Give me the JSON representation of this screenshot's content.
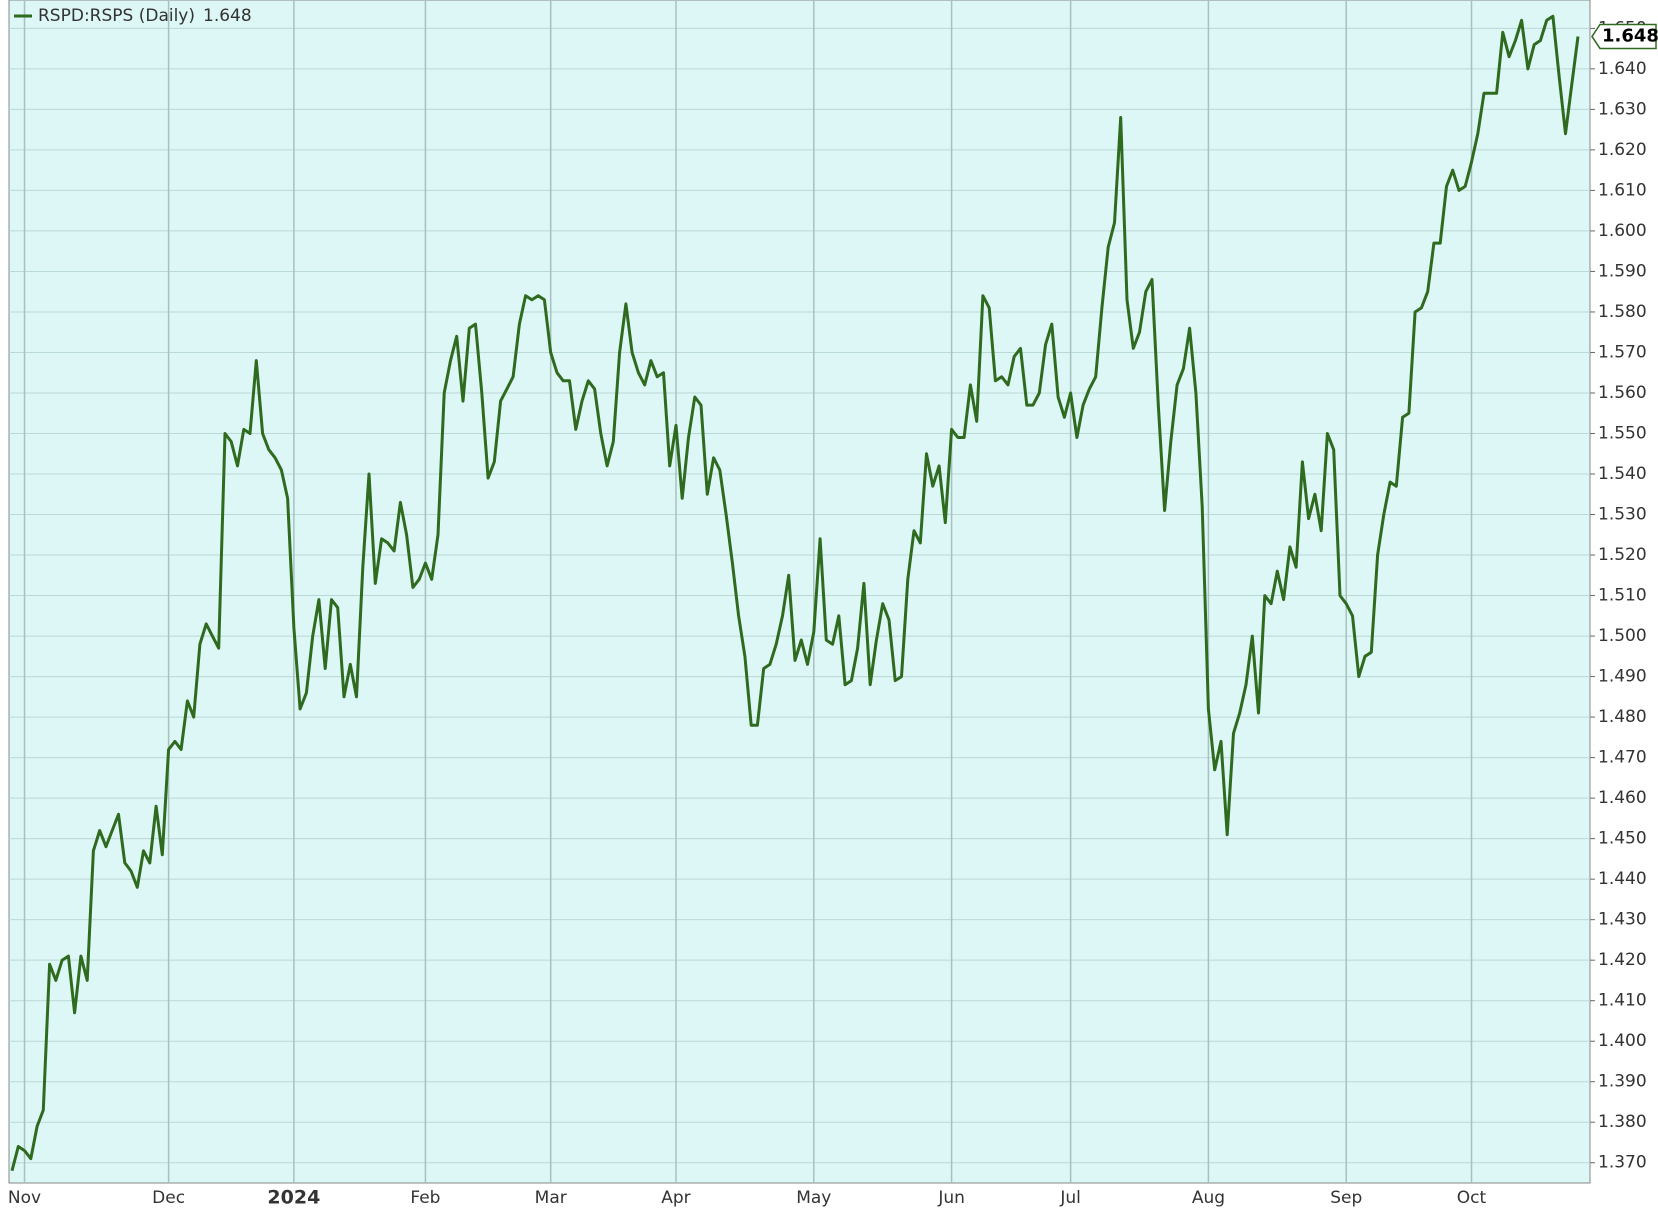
{
  "chart_data": {
    "type": "line",
    "series": [
      {
        "name": "RSPD:RSPS (Daily)",
        "color": "#2e6b1f",
        "value_labels": {
          "250": "1.648"
        },
        "values": [
          1.368,
          1.374,
          1.373,
          1.371,
          1.379,
          1.383,
          1.419,
          1.415,
          1.42,
          1.421,
          1.407,
          1.421,
          1.415,
          1.447,
          1.452,
          1.448,
          1.452,
          1.456,
          1.444,
          1.442,
          1.438,
          1.447,
          1.444,
          1.458,
          1.446,
          1.472,
          1.474,
          1.472,
          1.484,
          1.48,
          1.498,
          1.503,
          1.5,
          1.497,
          1.55,
          1.548,
          1.542,
          1.551,
          1.55,
          1.568,
          1.55,
          1.546,
          1.544,
          1.541,
          1.534,
          1.502,
          1.482,
          1.486,
          1.5,
          1.509,
          1.492,
          1.509,
          1.507,
          1.485,
          1.493,
          1.485,
          1.517,
          1.54,
          1.513,
          1.524,
          1.523,
          1.521,
          1.533,
          1.525,
          1.512,
          1.514,
          1.518,
          1.514,
          1.525,
          1.56,
          1.568,
          1.574,
          1.558,
          1.576,
          1.577,
          1.56,
          1.539,
          1.543,
          1.558,
          1.561,
          1.564,
          1.577,
          1.584,
          1.583,
          1.584,
          1.583,
          1.57,
          1.565,
          1.563,
          1.563,
          1.551,
          1.558,
          1.563,
          1.561,
          1.55,
          1.542,
          1.548,
          1.57,
          1.582,
          1.57,
          1.565,
          1.562,
          1.568,
          1.564,
          1.565,
          1.542,
          1.552,
          1.534,
          1.549,
          1.559,
          1.557,
          1.535,
          1.544,
          1.541,
          1.53,
          1.518,
          1.505,
          1.495,
          1.478,
          1.478,
          1.492,
          1.493,
          1.498,
          1.505,
          1.515,
          1.494,
          1.499,
          1.493,
          1.501,
          1.524,
          1.499,
          1.498,
          1.505,
          1.488,
          1.489,
          1.497,
          1.513,
          1.488,
          1.499,
          1.508,
          1.504,
          1.489,
          1.49,
          1.514,
          1.526,
          1.523,
          1.545,
          1.537,
          1.542,
          1.528,
          1.551,
          1.549,
          1.549,
          1.562,
          1.553,
          1.584,
          1.581,
          1.563,
          1.564,
          1.562,
          1.569,
          1.571,
          1.557,
          1.557,
          1.56,
          1.572,
          1.577,
          1.559,
          1.554,
          1.56,
          1.549,
          1.557,
          1.561,
          1.564,
          1.581,
          1.596,
          1.602,
          1.628,
          1.583,
          1.571,
          1.575,
          1.585,
          1.588,
          1.557,
          1.531,
          1.548,
          1.562,
          1.566,
          1.576,
          1.56,
          1.532,
          1.482,
          1.467,
          1.474,
          1.451,
          1.476,
          1.481,
          1.488,
          1.5,
          1.481,
          1.51,
          1.508,
          1.516,
          1.509,
          1.522,
          1.517,
          1.543,
          1.529,
          1.535,
          1.526,
          1.55,
          1.546,
          1.51,
          1.508,
          1.505,
          1.49,
          1.495,
          1.496,
          1.52,
          1.53,
          1.538,
          1.537,
          1.554,
          1.555,
          1.58,
          1.581,
          1.585,
          1.597,
          1.597,
          1.611,
          1.615,
          1.61,
          1.611,
          1.617,
          1.624,
          1.634,
          1.634,
          1.634,
          1.649,
          1.643,
          1.647,
          1.652,
          1.64,
          1.646,
          1.647,
          1.652,
          1.653,
          1.638,
          1.624,
          1.636,
          1.648
        ]
      }
    ],
    "categories": [
      null,
      null,
      "Nov",
      null,
      null,
      null,
      null,
      null,
      null,
      null,
      null,
      null,
      null,
      null,
      null,
      null,
      null,
      null,
      null,
      null,
      null,
      null,
      null,
      null,
      null,
      "Dec",
      null,
      null,
      null,
      null,
      null,
      null,
      null,
      null,
      null,
      null,
      null,
      null,
      null,
      null,
      null,
      null,
      null,
      null,
      null,
      "2024",
      null,
      null,
      null,
      null,
      null,
      null,
      null,
      null,
      null,
      null,
      null,
      null,
      null,
      null,
      null,
      null,
      null,
      null,
      null,
      null,
      "Feb",
      null,
      null,
      null,
      null,
      null,
      null,
      null,
      null,
      null,
      null,
      null,
      null,
      null,
      null,
      null,
      null,
      null,
      null,
      null,
      "Mar",
      null,
      null,
      null,
      null,
      null,
      null,
      null,
      null,
      null,
      null,
      null,
      null,
      null,
      null,
      null,
      null,
      null,
      null,
      null,
      "Apr",
      null,
      null,
      null,
      null,
      null,
      null,
      null,
      null,
      null,
      null,
      null,
      null,
      null,
      null,
      null,
      null,
      null,
      null,
      null,
      null,
      null,
      "May",
      null,
      null,
      null,
      null,
      null,
      null,
      null,
      null,
      null,
      null,
      null,
      null,
      null,
      null,
      null,
      null,
      null,
      null,
      null,
      null,
      null,
      "Jun",
      null,
      null,
      null,
      null,
      null,
      null,
      null,
      null,
      null,
      null,
      null,
      null,
      null,
      null,
      null,
      null,
      null,
      null,
      "Jul",
      null,
      null,
      null,
      null,
      null,
      null,
      null,
      null,
      null,
      null,
      null,
      null,
      null,
      null,
      null,
      null,
      null,
      null,
      null,
      null,
      null,
      "Aug",
      null,
      null,
      null,
      null,
      null,
      null,
      null,
      null,
      null,
      null,
      null,
      null,
      null,
      null,
      null,
      null,
      null,
      null,
      null,
      null,
      null,
      "Sep",
      null,
      null,
      null,
      null,
      null,
      null,
      null,
      null,
      null,
      null,
      null,
      null,
      null,
      null,
      null,
      null,
      null,
      null,
      null,
      "Oct",
      null,
      null,
      null,
      null,
      null,
      null,
      null,
      null,
      null,
      null,
      null,
      null,
      null,
      null,
      null,
      null,
      null
    ],
    "ylim": [
      1.365,
      1.657
    ],
    "yticks": [
      {
        "value": 1.37,
        "label": "1.370"
      },
      {
        "value": 1.38,
        "label": "1.380"
      },
      {
        "value": 1.39,
        "label": "1.390"
      },
      {
        "value": 1.4,
        "label": "1.400"
      },
      {
        "value": 1.41,
        "label": "1.410"
      },
      {
        "value": 1.42,
        "label": "1.420"
      },
      {
        "value": 1.43,
        "label": "1.430"
      },
      {
        "value": 1.44,
        "label": "1.440"
      },
      {
        "value": 1.45,
        "label": "1.450"
      },
      {
        "value": 1.46,
        "label": "1.460"
      },
      {
        "value": 1.47,
        "label": "1.470"
      },
      {
        "value": 1.48,
        "label": "1.480"
      },
      {
        "value": 1.49,
        "label": "1.490"
      },
      {
        "value": 1.5,
        "label": "1.500"
      },
      {
        "value": 1.51,
        "label": "1.510"
      },
      {
        "value": 1.52,
        "label": "1.520"
      },
      {
        "value": 1.53,
        "label": "1.530"
      },
      {
        "value": 1.54,
        "label": "1.540"
      },
      {
        "value": 1.55,
        "label": "1.550"
      },
      {
        "value": 1.56,
        "label": "1.560"
      },
      {
        "value": 1.57,
        "label": "1.570"
      },
      {
        "value": 1.58,
        "label": "1.580"
      },
      {
        "value": 1.59,
        "label": "1.590"
      },
      {
        "value": 1.6,
        "label": "1.600"
      },
      {
        "value": 1.61,
        "label": "1.610"
      },
      {
        "value": 1.62,
        "label": "1.620"
      },
      {
        "value": 1.63,
        "label": "1.630"
      },
      {
        "value": 1.64,
        "label": "1.640"
      },
      {
        "value": 1.65,
        "label": "1.650"
      }
    ],
    "grid": true,
    "y_axis_side": "right"
  }
}
